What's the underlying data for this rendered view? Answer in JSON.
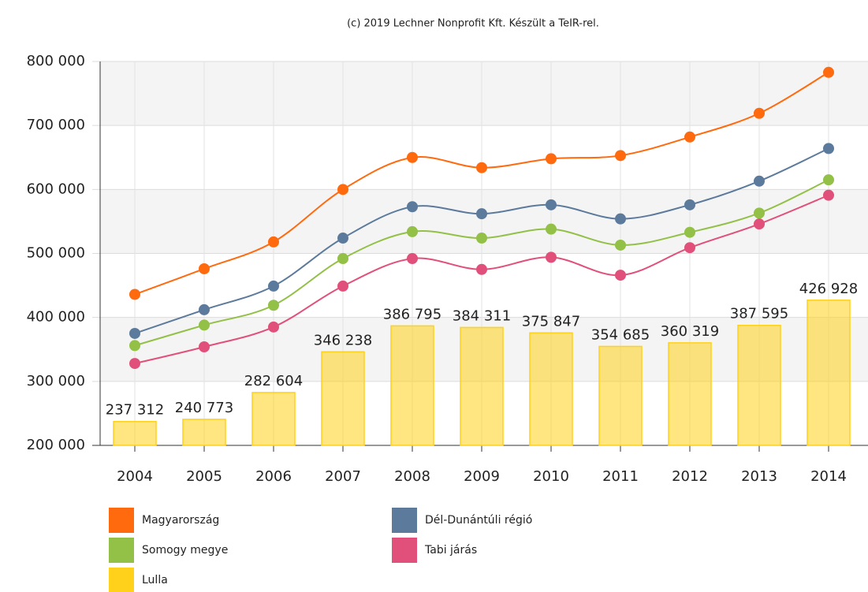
{
  "chart_data": {
    "type": "bar",
    "title": "(c) 2019 Lechner Nonprofit Kft. Készült a TeIR-rel.",
    "categories": [
      "2004",
      "2005",
      "2006",
      "2007",
      "2008",
      "2009",
      "2010",
      "2011",
      "2012",
      "2013",
      "2014"
    ],
    "ylim": [
      200000,
      800000
    ],
    "yticks": [
      {
        "value": 200000,
        "label": "200 000"
      },
      {
        "value": 300000,
        "label": "300 000"
      },
      {
        "value": 400000,
        "label": "400 000"
      },
      {
        "value": 500000,
        "label": "500 000"
      },
      {
        "value": 600000,
        "label": "600 000"
      },
      {
        "value": 700000,
        "label": "700 000"
      },
      {
        "value": 800000,
        "label": "800 000"
      }
    ],
    "grid": true,
    "series": [
      {
        "name": "Magyarország",
        "type": "line",
        "color": "#ff6a0e",
        "values": [
          436000,
          476000,
          518000,
          600000,
          650000,
          634000,
          648000,
          653000,
          682000,
          719000,
          783000
        ]
      },
      {
        "name": "Dél-Dunántúli régió",
        "type": "line",
        "color": "#5c7a9c",
        "values": [
          375000,
          412000,
          449000,
          524000,
          573000,
          562000,
          576000,
          554000,
          576000,
          613000,
          664000
        ]
      },
      {
        "name": "Somogy megye",
        "type": "line",
        "color": "#93c047",
        "values": [
          356000,
          388000,
          419000,
          492000,
          534000,
          524000,
          538000,
          513000,
          533000,
          563000,
          615000
        ]
      },
      {
        "name": "Tabi járás",
        "type": "line",
        "color": "#e0507a",
        "values": [
          328000,
          354000,
          385000,
          449000,
          492000,
          475000,
          494000,
          466000,
          509000,
          546000,
          591000
        ]
      },
      {
        "name": "Lulla",
        "type": "bar",
        "color": "#ffd11a",
        "values": [
          237312,
          240773,
          282604,
          346238,
          386795,
          384311,
          375847,
          354685,
          360319,
          387595,
          426928
        ],
        "value_labels": [
          "237 312",
          "240 773",
          "282 604",
          "346 238",
          "386 795",
          "384 311",
          "375 847",
          "354 685",
          "360 319",
          "387 595",
          "426 928"
        ]
      }
    ]
  }
}
